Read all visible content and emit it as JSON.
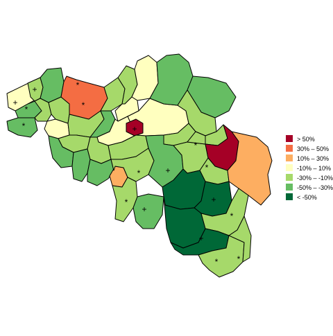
{
  "colors": {
    "c1": "#a50026",
    "c2": "#f46d43",
    "c3": "#fdae61",
    "c4": "#ffffbf",
    "c5": "#a6d96a",
    "c6": "#66bd63",
    "c7": "#006837",
    "border": "#000000"
  },
  "legend": {
    "items": [
      {
        "label": ">  50%",
        "color": "#a50026"
      },
      {
        "label": "30%  –   50%",
        "color": "#f46d43"
      },
      {
        "label": "10%  –   30%",
        "color": "#fdae61"
      },
      {
        "label": "-10%  –   10%",
        "color": "#ffffbf"
      },
      {
        "label": "-30%  –  -10%",
        "color": "#a6d96a"
      },
      {
        "label": "-50%  –  -30%",
        "color": "#66bd63"
      },
      {
        "label": "< -50%",
        "color": "#006837"
      }
    ]
  },
  "markers": {
    "plus_symbol": "+",
    "star_symbol": "*"
  }
}
